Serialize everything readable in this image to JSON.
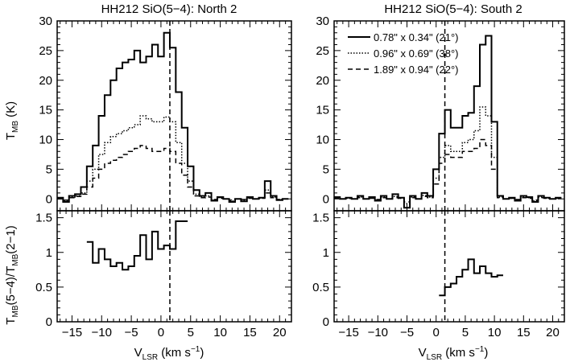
{
  "chart_data": [
    {
      "type": "line",
      "title": "HH212 SiO(5−4): North 2",
      "xlabel": "V_LSR (km s^-1)",
      "ylabel": "T_MB (K)",
      "xlim": [
        -17.5,
        22
      ],
      "ylim": [
        -2,
        30
      ],
      "vline_x": 1.5,
      "xticks": [
        -15,
        -10,
        -5,
        0,
        5,
        10,
        15,
        20
      ],
      "yticks": [
        0,
        5,
        10,
        15,
        20,
        25,
        30
      ],
      "x": [
        -17,
        -16,
        -15,
        -14,
        -13,
        -12,
        -11,
        -10,
        -9,
        -8,
        -7,
        -6,
        -5,
        -4,
        -3,
        -2,
        -1,
        0,
        1,
        2,
        3,
        4,
        5,
        6,
        7,
        8,
        9,
        10,
        11,
        12,
        13,
        14,
        15,
        16,
        17,
        18,
        19,
        20,
        21
      ],
      "series": [
        {
          "name": "0.78\" x 0.34\" (21°)",
          "style": "solid",
          "values": [
            0.2,
            -0.5,
            0.5,
            0.8,
            2.0,
            5.5,
            9.0,
            14.0,
            17.5,
            20.0,
            22.0,
            23.0,
            23.5,
            25.0,
            23.0,
            24.0,
            26.0,
            24.0,
            28.0,
            25.5,
            18.0,
            12.0,
            5.5,
            1.5,
            0.5,
            1.0,
            -0.3,
            0.3,
            0.0,
            -0.5,
            0.0,
            -0.4,
            0.3,
            0.0,
            0.2,
            3.0,
            0.5,
            -0.2,
            0.0
          ]
        },
        {
          "name": "0.96\" x 0.69\" (38°)",
          "style": "dotted",
          "values": [
            0.0,
            -0.3,
            0.3,
            0.5,
            1.0,
            3.0,
            5.0,
            7.5,
            9.5,
            10.5,
            11.0,
            11.5,
            12.0,
            12.5,
            14.0,
            13.5,
            13.0,
            13.0,
            13.8,
            13.0,
            9.5,
            6.0,
            3.0,
            0.8,
            0.3,
            0.5,
            -0.2,
            0.2,
            0.0,
            -0.3,
            0.0,
            -0.2,
            0.2,
            0.0,
            0.1,
            1.5,
            0.3,
            -0.1,
            0.0
          ]
        },
        {
          "name": "1.89\" x 0.94\" (22°)",
          "style": "dashed",
          "values": [
            0.0,
            -0.2,
            0.2,
            0.4,
            0.8,
            2.0,
            3.5,
            5.0,
            6.0,
            6.5,
            7.0,
            7.5,
            8.0,
            8.5,
            9.0,
            8.5,
            8.0,
            8.0,
            8.5,
            8.0,
            6.0,
            4.0,
            2.0,
            0.5,
            0.2,
            0.3,
            -0.1,
            0.1,
            0.0,
            -0.2,
            0.0,
            -0.1,
            0.1,
            0.0,
            0.1,
            1.0,
            0.2,
            -0.1,
            0.0
          ]
        }
      ]
    },
    {
      "type": "line",
      "title": "HH212 SiO(5−4): South 2",
      "xlabel": "V_LSR (km s^-1)",
      "ylabel": "",
      "xlim": [
        -17.5,
        22
      ],
      "ylim": [
        -2,
        30
      ],
      "vline_x": 1.5,
      "xticks": [
        -15,
        -10,
        -5,
        0,
        5,
        10,
        15,
        20
      ],
      "yticks": [
        0,
        5,
        10,
        15,
        20,
        25,
        30
      ],
      "x": [
        -17,
        -16,
        -15,
        -14,
        -13,
        -12,
        -11,
        -10,
        -9,
        -8,
        -7,
        -6,
        -5,
        -4,
        -3,
        -2,
        -1,
        0,
        1,
        2,
        3,
        4,
        5,
        6,
        7,
        8,
        9,
        10,
        11,
        12,
        13,
        14,
        15,
        16,
        17,
        18,
        19,
        20,
        21
      ],
      "series": [
        {
          "name": "0.78\" x 0.34\" (21°)",
          "style": "solid",
          "values": [
            0.3,
            0.0,
            0.2,
            0.0,
            0.5,
            0.0,
            0.3,
            -0.3,
            0.5,
            0.0,
            0.8,
            0.2,
            -1.5,
            0.5,
            0.0,
            1.0,
            0.5,
            5.0,
            11.0,
            15.0,
            12.0,
            12.0,
            14.0,
            14.5,
            19.0,
            26.0,
            27.5,
            13.0,
            0.5,
            0.0,
            0.2,
            -0.3,
            0.5,
            0.3,
            -0.5,
            0.5,
            0.2,
            0.0,
            0.2
          ]
        },
        {
          "name": "0.96\" x 0.69\" (38°)",
          "style": "dotted",
          "values": [
            0.2,
            0.0,
            0.1,
            0.0,
            0.3,
            0.0,
            0.2,
            -0.2,
            0.3,
            0.0,
            0.4,
            0.1,
            -0.8,
            0.3,
            0.0,
            0.6,
            0.3,
            3.5,
            7.0,
            9.0,
            8.0,
            8.0,
            9.5,
            10.0,
            11.5,
            15.5,
            14.0,
            7.0,
            0.3,
            0.0,
            0.1,
            -0.2,
            0.3,
            0.2,
            -0.3,
            0.3,
            0.1,
            0.0,
            0.1
          ]
        },
        {
          "name": "1.89\" x 0.94\" (22°)",
          "style": "dashed",
          "values": [
            0.1,
            0.0,
            0.1,
            0.0,
            0.2,
            0.0,
            0.1,
            -0.1,
            0.2,
            0.0,
            0.2,
            0.1,
            -0.5,
            0.2,
            0.0,
            0.4,
            0.2,
            2.5,
            6.0,
            7.5,
            7.0,
            7.0,
            8.0,
            8.0,
            8.5,
            10.0,
            9.0,
            5.0,
            0.2,
            0.0,
            0.1,
            -0.1,
            0.2,
            0.1,
            -0.2,
            0.2,
            0.1,
            0.0,
            0.1
          ]
        }
      ]
    },
    {
      "type": "line",
      "title": "",
      "xlabel": "V_LSR (km s^-1)",
      "ylabel": "T_MB(5-4)/T_MB(2-1)",
      "xlim": [
        -17.5,
        22
      ],
      "ylim": [
        0,
        1.6
      ],
      "vline_x": 1.5,
      "xticks": [
        -15,
        -10,
        -5,
        0,
        5,
        10,
        15,
        20
      ],
      "yticks": [
        0,
        0.5,
        1,
        1.5
      ],
      "x": [
        -12,
        -11,
        -10,
        -9,
        -8,
        -7,
        -6,
        -5,
        -4,
        -3,
        -2,
        -1,
        0,
        1,
        2,
        3,
        4
      ],
      "series": [
        {
          "name": "",
          "style": "solid",
          "values": [
            1.15,
            0.85,
            1.05,
            0.9,
            0.8,
            0.85,
            0.75,
            0.8,
            0.95,
            1.25,
            0.9,
            1.3,
            1.05,
            1.1,
            1.05,
            1.45,
            1.45
          ]
        }
      ]
    },
    {
      "type": "line",
      "title": "",
      "xlabel": "V_LSR (km s^-1)",
      "ylabel": "",
      "xlim": [
        -17.5,
        22
      ],
      "ylim": [
        0,
        1.6
      ],
      "vline_x": 1.5,
      "xticks": [
        -15,
        -10,
        -5,
        0,
        5,
        10,
        15,
        20
      ],
      "yticks": [
        0,
        0.5,
        1,
        1.5
      ],
      "x": [
        1,
        2,
        3,
        4,
        5,
        6,
        7,
        8,
        9,
        10,
        11
      ],
      "series": [
        {
          "name": "",
          "style": "solid",
          "values": [
            0.38,
            0.5,
            0.55,
            0.65,
            0.75,
            0.9,
            0.7,
            0.8,
            0.7,
            0.65,
            0.67
          ]
        }
      ]
    }
  ],
  "labels": {
    "ylabel_top": "T",
    "ylabel_top_sub": "MB",
    "ylabel_top_unit": " (K)",
    "ylabel_bottom": "T",
    "ylabel_bottom_sub1": "MB",
    "ylabel_bottom_mid": "(5−4)/T",
    "ylabel_bottom_sub2": "MB",
    "ylabel_bottom_end": "(2−1)",
    "xlabel_main": "V",
    "xlabel_sub": "LSR",
    "xlabel_unit": " (km s",
    "xlabel_sup": "−1",
    "xlabel_end": ")"
  }
}
